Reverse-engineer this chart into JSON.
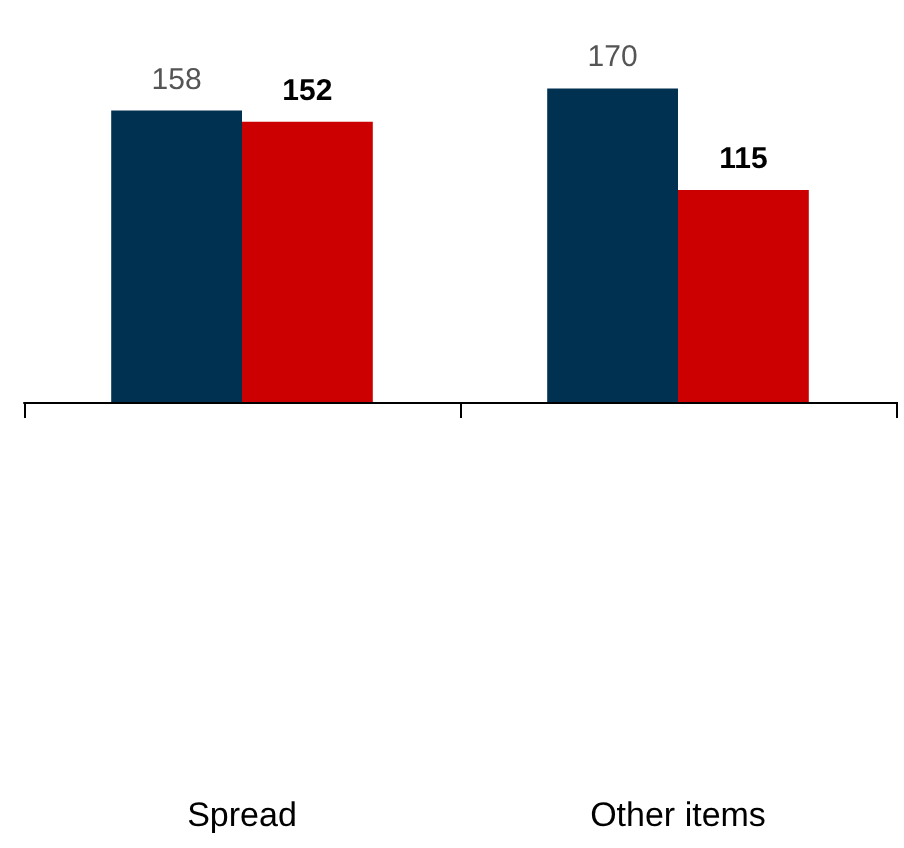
{
  "chart_data": {
    "type": "bar",
    "categories": [
      "Spread",
      "Other items"
    ],
    "series": [
      {
        "color": "#003150",
        "values": [
          158,
          170
        ]
      },
      {
        "color": "#cc0000",
        "values": [
          152,
          115
        ]
      }
    ],
    "data_labels": true
  }
}
